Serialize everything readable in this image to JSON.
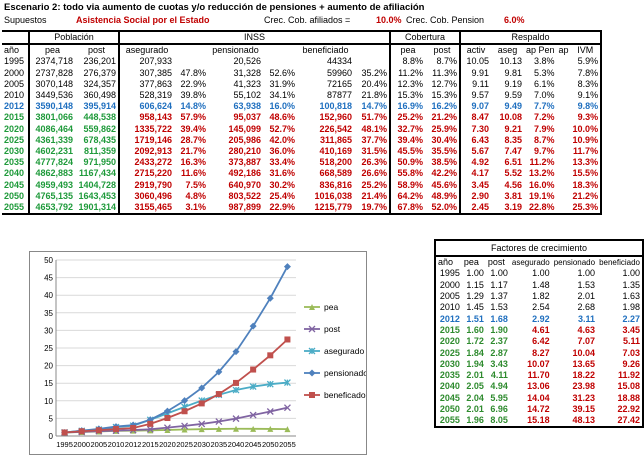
{
  "title": "Escenario 2: todo via aumento de cuotas y/o reducción de pensiones + aumento de afiliación",
  "subheader": {
    "supuestos_label": "Supuestos",
    "scenario_name": "Asistencia Social por el Estado",
    "crec_afiliados_label": "Crec. Cob. afiliados =",
    "crec_afiliados_value": "10.0%",
    "crec_pension_label": "Crec. Cob. Pension",
    "crec_pension_value": "6.0%"
  },
  "main_table": {
    "group_headers": [
      "Población",
      "INSS",
      "Cobertura",
      "Respaldo"
    ],
    "col_headers": [
      "año",
      "pea",
      "post",
      "asegurado",
      "",
      "pensionado",
      "",
      "beneficiado",
      "",
      "pea",
      "post",
      "activ",
      "aseg",
      "ap Pen",
      "ap",
      "IVM"
    ],
    "rows": [
      {
        "style": "normal",
        "cells": [
          "1995",
          "2374,718",
          "236,201",
          "207,933",
          "",
          "20,526",
          "",
          "44334",
          "",
          "8.8%",
          "8.7%",
          "10.05",
          "10.13",
          "3.8%",
          "",
          "5.9%"
        ]
      },
      {
        "style": "normal",
        "cells": [
          "2000",
          "2737,828",
          "276,379",
          "307,385",
          "47.8%",
          "31,328",
          "52.6%",
          "59960",
          "35.2%",
          "11.2%",
          "11.3%",
          "9.91",
          "9.81",
          "5.3%",
          "",
          "7.8%"
        ]
      },
      {
        "style": "normal",
        "cells": [
          "2005",
          "3070,148",
          "324,357",
          "377,863",
          "22.9%",
          "41,323",
          "31.9%",
          "72165",
          "20.4%",
          "12.3%",
          "12.7%",
          "9.11",
          "9.19",
          "6.1%",
          "",
          "8.3%"
        ]
      },
      {
        "style": "normal",
        "cells": [
          "2010",
          "3449,536",
          "360,498",
          "528,319",
          "39.8%",
          "55,102",
          "34.1%",
          "87877",
          "21.8%",
          "15.3%",
          "15.3%",
          "9.57",
          "9.59",
          "7.0%",
          "",
          "9.1%"
        ]
      },
      {
        "style": "blue",
        "cells": [
          "2012",
          "3590,148",
          "395,914",
          "606,624",
          "14.8%",
          "63,938",
          "16.0%",
          "100,818",
          "14.7%",
          "16.9%",
          "16.2%",
          "9.07",
          "9.49",
          "7.7%",
          "",
          "9.8%"
        ]
      },
      {
        "style": "green",
        "cells": [
          "2015",
          "3801,066",
          "448,538",
          "958,143",
          "57.9%",
          "95,037",
          "48.6%",
          "152,960",
          "51.7%",
          "25.2%",
          "21.2%",
          "8.47",
          "10.08",
          "7.2%",
          "",
          "9.3%"
        ]
      },
      {
        "style": "green",
        "cells": [
          "2020",
          "4086,464",
          "559,862",
          "1335,722",
          "39.4%",
          "145,099",
          "52.7%",
          "226,542",
          "48.1%",
          "32.7%",
          "25.9%",
          "7.30",
          "9.21",
          "7.9%",
          "",
          "10.0%"
        ]
      },
      {
        "style": "green",
        "cells": [
          "2025",
          "4361,339",
          "678,435",
          "1719,146",
          "28.7%",
          "205,986",
          "42.0%",
          "311,865",
          "37.7%",
          "39.4%",
          "30.4%",
          "6.43",
          "8.35",
          "8.7%",
          "",
          "10.9%"
        ]
      },
      {
        "style": "green",
        "cells": [
          "2030",
          "4602,231",
          "811,359",
          "2092,913",
          "21.7%",
          "280,210",
          "36.0%",
          "410,169",
          "31.5%",
          "45.5%",
          "35.5%",
          "5.67",
          "7.47",
          "9.7%",
          "",
          "11.7%"
        ]
      },
      {
        "style": "green",
        "cells": [
          "2035",
          "4777,824",
          "971,950",
          "2433,272",
          "16.3%",
          "373,887",
          "33.4%",
          "518,200",
          "26.3%",
          "50.9%",
          "38.5%",
          "4.92",
          "6.51",
          "11.2%",
          "",
          "13.3%"
        ]
      },
      {
        "style": "green",
        "cells": [
          "2040",
          "4862,883",
          "1167,434",
          "2715,220",
          "11.6%",
          "492,186",
          "31.6%",
          "668,589",
          "26.6%",
          "55.8%",
          "42.2%",
          "4.17",
          "5.52",
          "13.2%",
          "",
          "15.5%"
        ]
      },
      {
        "style": "green",
        "cells": [
          "2045",
          "4959,493",
          "1404,728",
          "2919,790",
          "7.5%",
          "640,970",
          "30.2%",
          "836,816",
          "25.2%",
          "58.9%",
          "45.6%",
          "3.45",
          "4.56",
          "16.0%",
          "",
          "18.3%"
        ]
      },
      {
        "style": "green",
        "cells": [
          "2050",
          "4765,135",
          "1643,453",
          "3060,496",
          "4.8%",
          "803,522",
          "25.4%",
          "1016,038",
          "21.4%",
          "64.2%",
          "48.9%",
          "2.90",
          "3.81",
          "19.1%",
          "",
          "21.2%"
        ]
      },
      {
        "style": "green",
        "cells": [
          "2055",
          "4653,792",
          "1901,314",
          "3155,465",
          "3.1%",
          "987,899",
          "22.9%",
          "1215,779",
          "19.7%",
          "67.8%",
          "52.0%",
          "2.45",
          "3.19",
          "22.8%",
          "",
          "25.3%"
        ]
      }
    ]
  },
  "factores": {
    "title": "Factores de crecimiento",
    "headers": [
      "año",
      "pea",
      "post",
      "asegurado",
      "pensionado",
      "beneficiado"
    ],
    "rows": [
      {
        "style": "normal",
        "cells": [
          "1995",
          "1.00",
          "1.00",
          "1.00",
          "1.00",
          "1.00"
        ]
      },
      {
        "style": "normal",
        "cells": [
          "2000",
          "1.15",
          "1.17",
          "1.48",
          "1.53",
          "1.35"
        ]
      },
      {
        "style": "normal",
        "cells": [
          "2005",
          "1.29",
          "1.37",
          "1.82",
          "2.01",
          "1.63"
        ]
      },
      {
        "style": "normal",
        "cells": [
          "2010",
          "1.45",
          "1.53",
          "2.54",
          "2.68",
          "1.98"
        ]
      },
      {
        "style": "blue",
        "cells": [
          "2012",
          "1.51",
          "1.68",
          "2.92",
          "3.11",
          "2.27"
        ]
      },
      {
        "style": "green2",
        "cells": [
          "2015",
          "1.60",
          "1.90",
          "4.61",
          "4.63",
          "3.45"
        ]
      },
      {
        "style": "green2",
        "cells": [
          "2020",
          "1.72",
          "2.37",
          "6.42",
          "7.07",
          "5.11"
        ]
      },
      {
        "style": "green2",
        "cells": [
          "2025",
          "1.84",
          "2.87",
          "8.27",
          "10.04",
          "7.03"
        ]
      },
      {
        "style": "mixed",
        "cells": [
          "2030",
          "1.94",
          "3.43",
          "10.07",
          "13.65",
          "9.26"
        ]
      },
      {
        "style": "mixed",
        "cells": [
          "2035",
          "2.01",
          "4.11",
          "11.70",
          "18.22",
          "11.92"
        ]
      },
      {
        "style": "mixed",
        "cells": [
          "2040",
          "2.05",
          "4.94",
          "13.06",
          "23.98",
          "15.08"
        ]
      },
      {
        "style": "mixed",
        "cells": [
          "2045",
          "2.04",
          "5.95",
          "14.04",
          "31.23",
          "18.88"
        ]
      },
      {
        "style": "mixed",
        "cells": [
          "2050",
          "2.01",
          "6.96",
          "14.72",
          "39.15",
          "22.92"
        ]
      },
      {
        "style": "mixed",
        "cells": [
          "2055",
          "1.96",
          "8.05",
          "15.18",
          "48.13",
          "27.42"
        ]
      }
    ]
  },
  "chart_data": {
    "type": "line",
    "title": "",
    "xlabel": "",
    "ylabel": "",
    "categories": [
      "1995",
      "2000",
      "2005",
      "2010",
      "2012",
      "2015",
      "2020",
      "2025",
      "2030",
      "2035",
      "2040",
      "2045",
      "2050",
      "2055"
    ],
    "ylim": [
      0,
      50
    ],
    "yticks": [
      0,
      5,
      10,
      15,
      20,
      25,
      30,
      35,
      40,
      45,
      50
    ],
    "legend_position": "right",
    "series": [
      {
        "name": "pea",
        "color": "#9bbb59",
        "marker": "triangle",
        "values": [
          1.0,
          1.15,
          1.29,
          1.45,
          1.51,
          1.6,
          1.72,
          1.84,
          1.94,
          2.01,
          2.05,
          2.04,
          2.01,
          1.96
        ]
      },
      {
        "name": "post",
        "color": "#8064a2",
        "marker": "x",
        "values": [
          1.0,
          1.17,
          1.37,
          1.53,
          1.68,
          1.9,
          2.37,
          2.87,
          3.43,
          4.11,
          4.94,
          5.95,
          6.96,
          8.05
        ]
      },
      {
        "name": "asegurado",
        "color": "#4bacc6",
        "marker": "star",
        "values": [
          1.0,
          1.48,
          1.82,
          2.54,
          2.92,
          4.61,
          6.42,
          8.27,
          10.07,
          11.7,
          13.06,
          14.04,
          14.72,
          15.18
        ]
      },
      {
        "name": "pensionado",
        "color": "#4f81bd",
        "marker": "diamond",
        "values": [
          1.0,
          1.53,
          2.01,
          2.68,
          3.11,
          4.63,
          7.07,
          10.04,
          13.65,
          18.22,
          23.98,
          31.23,
          39.15,
          48.13
        ]
      },
      {
        "name": "beneficado",
        "color": "#c0504d",
        "marker": "square",
        "values": [
          1.0,
          1.35,
          1.63,
          1.98,
          2.27,
          3.45,
          5.11,
          7.03,
          9.26,
          11.92,
          15.08,
          18.88,
          22.92,
          27.42
        ]
      }
    ]
  }
}
